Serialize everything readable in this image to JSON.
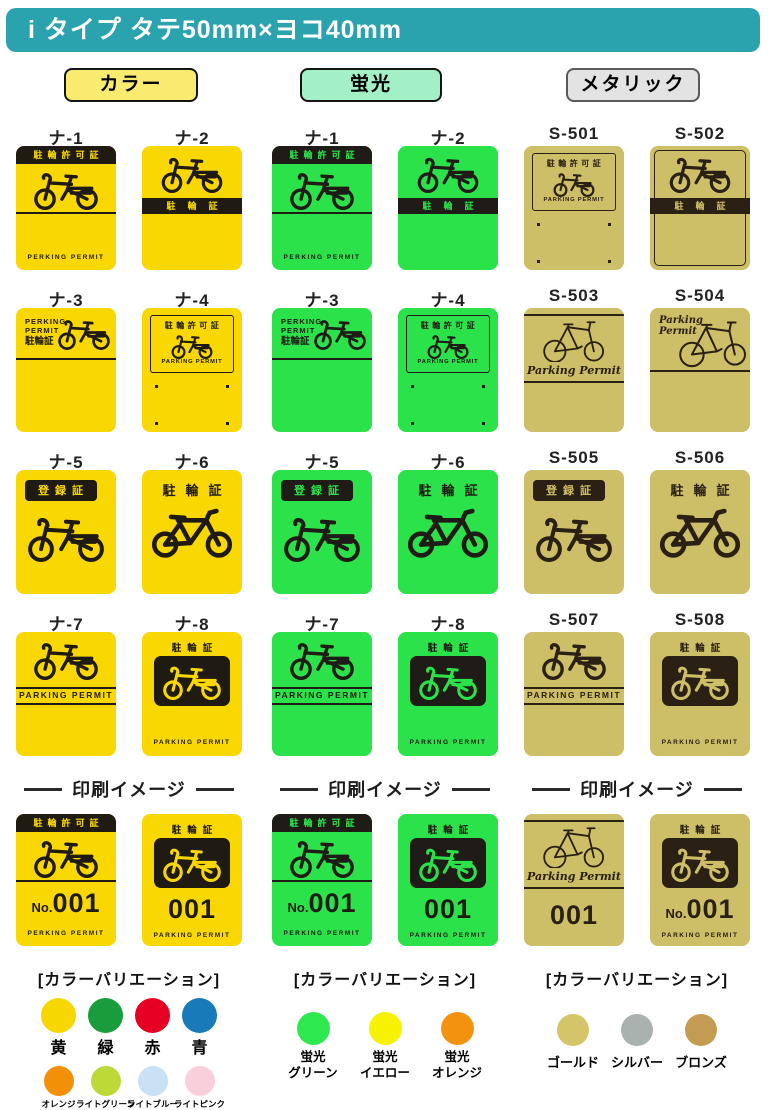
{
  "header": {
    "title": "i タイプ タテ50mm×ヨコ40mm",
    "bg": "#2AA3AF",
    "text_color": "#ffffff"
  },
  "categories": [
    {
      "label": "カラー",
      "bg": "#F8EB6F",
      "border": "#141414"
    },
    {
      "label": "蛍光",
      "bg": "#A3F0C7",
      "border": "#141414"
    },
    {
      "label": "メタリック",
      "bg": "#E3E3E3",
      "border": "#5a5a5a"
    }
  ],
  "texts": {
    "permit_5": "駐輪許可証",
    "permit_3": "駐輪証",
    "registration": "登録証",
    "perking_en": "PERKING PERMIT",
    "parking_en": "PARKING PERMIT",
    "perking_line1": "PERKING",
    "perking_line2": "PERMIT",
    "parking_script": "Parking Permit",
    "parking_script_l1": "Parking",
    "parking_script_l2": "Permit"
  },
  "groups": [
    {
      "name": "color",
      "tag_bg": "#F9D802",
      "ink": "#201b12",
      "items": [
        {
          "code": "ナ-1",
          "variant": "headerBand"
        },
        {
          "code": "ナ-2",
          "variant": "midBand"
        },
        {
          "code": "ナ-3",
          "variant": "cornerText"
        },
        {
          "code": "ナ-4",
          "variant": "boxed"
        },
        {
          "code": "ナ-5",
          "variant": "regBand"
        },
        {
          "code": "ナ-6",
          "variant": "plainTitle"
        },
        {
          "code": "ナ-7",
          "variant": "dividerPermit"
        },
        {
          "code": "ナ-8",
          "variant": "blackBox"
        }
      ],
      "print_header": "印刷イメージ",
      "print_items": [
        {
          "variant": "headerBand",
          "prefix": "No.",
          "number": "001"
        },
        {
          "variant": "blackBox",
          "prefix": "",
          "number": "001"
        }
      ],
      "variation_title": "[カラーバリエーション]",
      "swatches": [
        {
          "label": "黄",
          "color": "#F7D700"
        },
        {
          "label": "緑",
          "color": "#189C3C"
        },
        {
          "label": "赤",
          "color": "#E60024"
        },
        {
          "label": "青",
          "color": "#187AB8"
        },
        {
          "label": "オレンジ",
          "color": "#F29007"
        },
        {
          "label": "ライトグリーン",
          "color": "#BCD937"
        },
        {
          "label": "ライトブルー",
          "color": "#C9E1F4"
        },
        {
          "label": "ライトピンク",
          "color": "#F9CFDC"
        }
      ]
    },
    {
      "name": "fluorescent",
      "tag_bg": "#2CE24B",
      "ink": "#1f1b16",
      "items": [
        {
          "code": "ナ-1",
          "variant": "headerBand"
        },
        {
          "code": "ナ-2",
          "variant": "midBand"
        },
        {
          "code": "ナ-3",
          "variant": "cornerText"
        },
        {
          "code": "ナ-4",
          "variant": "boxed"
        },
        {
          "code": "ナ-5",
          "variant": "regBand"
        },
        {
          "code": "ナ-6",
          "variant": "plainTitle"
        },
        {
          "code": "ナ-7",
          "variant": "dividerPermit"
        },
        {
          "code": "ナ-8",
          "variant": "blackBox"
        }
      ],
      "print_header": "印刷イメージ",
      "print_items": [
        {
          "variant": "headerBand",
          "prefix": "No.",
          "number": "001"
        },
        {
          "variant": "blackBox",
          "prefix": "",
          "number": "001"
        }
      ],
      "variation_title": "[カラーバリエーション]",
      "swatches": [
        {
          "label": "蛍光グリーン",
          "lines": [
            "蛍光",
            "グリーン"
          ],
          "color": "#2DE84F"
        },
        {
          "label": "蛍光イエロー",
          "lines": [
            "蛍光",
            "イエロー"
          ],
          "color": "#F7F200"
        },
        {
          "label": "蛍光オレンジ",
          "lines": [
            "蛍光",
            "オレンジ"
          ],
          "color": "#F3920E"
        }
      ]
    },
    {
      "name": "metallic",
      "tag_bg": "#CDBE68",
      "ink": "#2b2014",
      "items": [
        {
          "code": "S-501",
          "variant": "boxed"
        },
        {
          "code": "S-502",
          "variant": "midBand",
          "inner_border": true
        },
        {
          "code": "S-503",
          "variant": "sketchLines"
        },
        {
          "code": "S-504",
          "variant": "scriptTop"
        },
        {
          "code": "S-505",
          "variant": "regBand"
        },
        {
          "code": "S-506",
          "variant": "plainTitle"
        },
        {
          "code": "S-507",
          "variant": "dividerPermit"
        },
        {
          "code": "S-508",
          "variant": "blackBox"
        }
      ],
      "print_header": "印刷イメージ",
      "print_items": [
        {
          "variant": "sketchLines",
          "prefix": "",
          "number": "001"
        },
        {
          "variant": "blackBox",
          "prefix": "No.",
          "number": "001"
        }
      ],
      "variation_title": "[カラーバリエーション]",
      "swatches": [
        {
          "label": "ゴールド",
          "color": "#D5C569"
        },
        {
          "label": "シルバー",
          "color": "#A9B2AE"
        },
        {
          "label": "ブロンズ",
          "color": "#C39B52"
        }
      ]
    }
  ]
}
